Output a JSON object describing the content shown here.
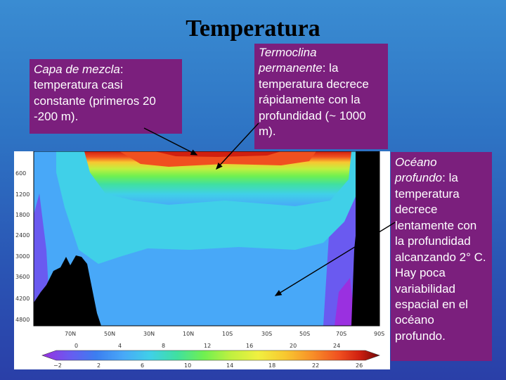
{
  "title": "Temperatura",
  "callouts": {
    "mix": {
      "term": "Capa de mezcla",
      "text": ": temperatura casi constante (primeros 20 -200 m)."
    },
    "thermo": {
      "term": "Termoclina permanente",
      "text": ": la temperatura decrece rápidamente con la profundidad (~ 1000 m)."
    },
    "deep": {
      "term": "Océano profundo",
      "text": ": la temperatura decrece lentamente con la profundidad alcanzando 2° C. Hay poca variabilidad espacial en el océano profundo."
    }
  },
  "chart_data": {
    "type": "heatmap",
    "y_ticks": [
      "600",
      "1200",
      "1800",
      "2400",
      "3000",
      "3600",
      "4200",
      "4800"
    ],
    "x_ticks": [
      "70N",
      "50N",
      "30N",
      "10N",
      "10S",
      "30S",
      "50S",
      "70S",
      "90S"
    ],
    "colorbar_top_ticks": [
      "0",
      "4",
      "8",
      "12",
      "16",
      "20",
      "24"
    ],
    "colorbar_bottom_ticks": [
      "−2",
      "2",
      "6",
      "10",
      "14",
      "18",
      "22",
      "26"
    ],
    "colormap": [
      "#9a30e0",
      "#6a5af0",
      "#3c7ef0",
      "#48a8f8",
      "#40d0e8",
      "#40e0a0",
      "#70f050",
      "#c0f040",
      "#f0f040",
      "#f8c830",
      "#f89028",
      "#f05020",
      "#d02010",
      "#a00808",
      "#700808"
    ]
  }
}
